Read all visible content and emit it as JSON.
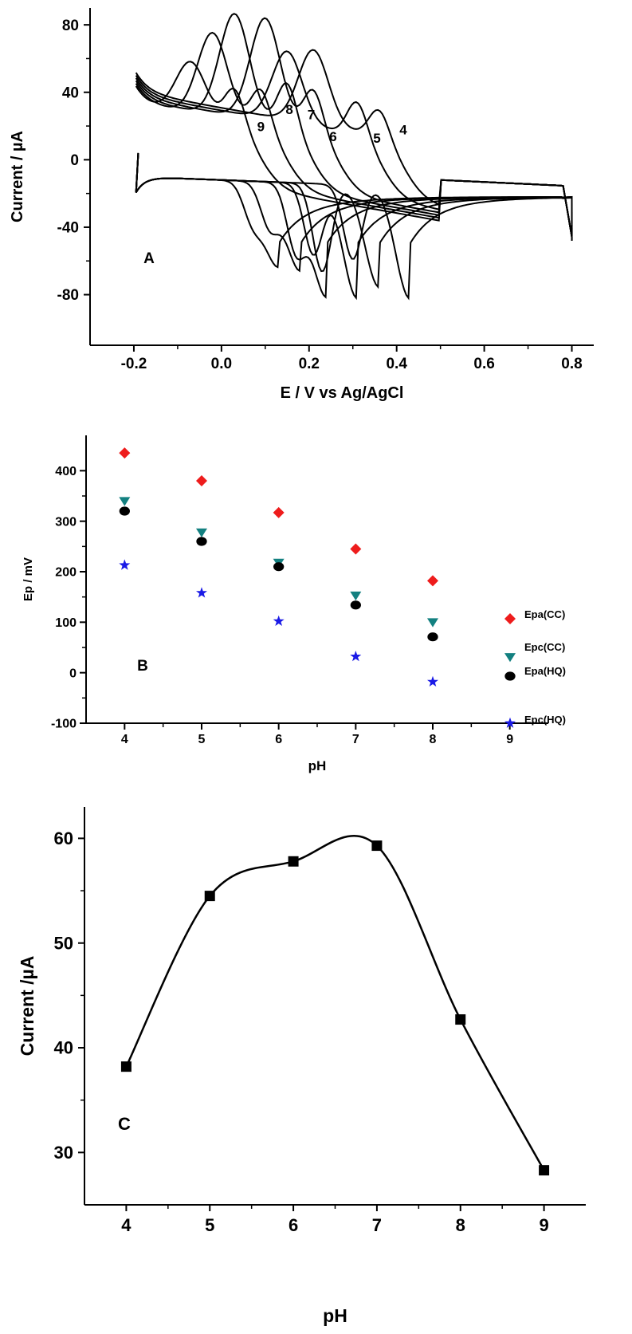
{
  "chart_data": [
    {
      "type": "line",
      "panel_label": "A",
      "xlabel": "E / V vs Ag/AgCl",
      "ylabel": "Current / µA",
      "xlim": [
        -0.3,
        0.85
      ],
      "ylim": [
        -110,
        90
      ],
      "xticks": [
        -0.2,
        0.0,
        0.2,
        0.4,
        0.6,
        0.8
      ],
      "xtick_labels": [
        "-0.2",
        "0.0",
        "0.2",
        "0.4",
        "0.6",
        "0.8"
      ],
      "yticks": [
        80,
        40,
        0,
        -40,
        -80
      ],
      "ytick_labels": [
        "80",
        "40",
        "0",
        "-40",
        "-80"
      ],
      "curve_labels": [
        {
          "text": "9",
          "x": 0.09,
          "y": 17
        },
        {
          "text": "8",
          "x": 0.155,
          "y": 27
        },
        {
          "text": "7",
          "x": 0.205,
          "y": 24
        },
        {
          "text": "6",
          "x": 0.255,
          "y": 11
        },
        {
          "text": "5",
          "x": 0.355,
          "y": 10
        },
        {
          "text": "4",
          "x": 0.415,
          "y": 15
        }
      ],
      "series": [
        {
          "anodic_peaks": [
            [
              -0.07,
              46
            ],
            [
              0.03,
              37
            ]
          ],
          "cathodic_peaks": [
            [
              0.07,
              -42
            ],
            [
              0.13,
              -72
            ]
          ]
        },
        {
          "anodic_peaks": [
            [
              -0.02,
              64
            ],
            [
              0.09,
              38
            ]
          ],
          "cathodic_peaks": [
            [
              0.11,
              -47
            ],
            [
              0.18,
              -74
            ]
          ]
        },
        {
          "anodic_peaks": [
            [
              0.03,
              76
            ],
            [
              0.15,
              43
            ]
          ],
          "cathodic_peaks": [
            [
              0.17,
              -60
            ],
            [
              0.24,
              -89
            ]
          ]
        },
        {
          "anodic_peaks": [
            [
              0.1,
              75
            ],
            [
              0.21,
              40
            ]
          ],
          "cathodic_peaks": [
            [
              0.21,
              -64
            ],
            [
              0.31,
              -89
            ]
          ]
        },
        {
          "anodic_peaks": [
            [
              0.15,
              56
            ],
            [
              0.31,
              36
            ]
          ],
          "cathodic_peaks": [
            [
              0.23,
              -74
            ],
            [
              0.36,
              -82
            ]
          ]
        },
        {
          "anodic_peaks": [
            [
              0.21,
              58
            ],
            [
              0.36,
              32
            ]
          ],
          "cathodic_peaks": [
            [
              0.3,
              -66
            ],
            [
              0.43,
              -88
            ]
          ]
        }
      ]
    },
    {
      "type": "scatter",
      "panel_label": "B",
      "xlabel": "pH",
      "ylabel": "Ep / mV",
      "xlim": [
        3.5,
        9.5
      ],
      "ylim": [
        -100,
        470
      ],
      "xticks": [
        4,
        5,
        6,
        7,
        8,
        9
      ],
      "xtick_labels": [
        "4",
        "5",
        "6",
        "7",
        "8",
        "9"
      ],
      "yticks": [
        -100,
        0,
        100,
        200,
        300,
        400
      ],
      "ytick_labels": [
        "-100",
        "0",
        "100",
        "200",
        "300",
        "400"
      ],
      "legend_position": "right",
      "series": [
        {
          "name": "Epa(CC)",
          "marker": "diamond",
          "color": "#ee1c1c",
          "x": [
            4,
            5,
            6,
            7,
            8
          ],
          "y": [
            435,
            380,
            317,
            245,
            182
          ]
        },
        {
          "name": "Epc(CC)",
          "marker": "triangle-down",
          "color": "#138080",
          "x": [
            4,
            5,
            6,
            7,
            8
          ],
          "y": [
            340,
            278,
            218,
            153,
            100
          ]
        },
        {
          "name": "Epa(HQ)",
          "marker": "circle",
          "color": "#000000",
          "x": [
            4,
            5,
            6,
            7,
            8
          ],
          "y": [
            320,
            260,
            210,
            134,
            71
          ]
        },
        {
          "name": "Epc(HQ)",
          "marker": "star",
          "color": "#1a1ae6",
          "x": [
            4,
            5,
            6,
            7,
            8
          ],
          "y": [
            213,
            158,
            102,
            32,
            -18
          ]
        }
      ]
    },
    {
      "type": "line",
      "panel_label": "C",
      "xlabel": "pH",
      "ylabel": "Current /µA",
      "xlim": [
        3.5,
        9.5
      ],
      "ylim": [
        25,
        63
      ],
      "xticks": [
        4,
        5,
        6,
        7,
        8,
        9
      ],
      "xtick_labels": [
        "4",
        "5",
        "6",
        "7",
        "8",
        "9"
      ],
      "yticks": [
        30,
        40,
        50,
        60
      ],
      "ytick_labels": [
        "30",
        "40",
        "50",
        "60"
      ],
      "series": [
        {
          "marker": "square",
          "color": "#000000",
          "x": [
            4,
            5,
            6,
            7,
            8,
            9
          ],
          "y": [
            38.2,
            54.5,
            57.8,
            59.3,
            42.7,
            28.3
          ]
        }
      ]
    }
  ]
}
